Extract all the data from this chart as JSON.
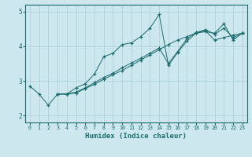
{
  "xlabel": "Humidex (Indice chaleur)",
  "bg_color": "#cce8ee",
  "line_color": "#1a6b6b",
  "grid_color": "#aacdd6",
  "xlim": [
    -0.5,
    23.5
  ],
  "ylim": [
    1.8,
    5.2
  ],
  "yticks": [
    2,
    3,
    4,
    5
  ],
  "xticks": [
    0,
    1,
    2,
    3,
    4,
    5,
    6,
    7,
    8,
    9,
    10,
    11,
    12,
    13,
    14,
    15,
    16,
    17,
    18,
    19,
    20,
    21,
    22,
    23
  ],
  "series1": [
    [
      0,
      2.85
    ],
    [
      1,
      2.62
    ],
    [
      2,
      2.3
    ],
    [
      3,
      2.62
    ],
    [
      4,
      2.62
    ],
    [
      5,
      2.8
    ],
    [
      6,
      2.92
    ],
    [
      7,
      3.2
    ],
    [
      8,
      3.7
    ],
    [
      9,
      3.8
    ],
    [
      10,
      4.05
    ],
    [
      11,
      4.1
    ],
    [
      12,
      4.28
    ],
    [
      13,
      4.52
    ],
    [
      14,
      4.92
    ],
    [
      15,
      3.45
    ],
    [
      16,
      3.82
    ],
    [
      17,
      4.15
    ],
    [
      18,
      4.38
    ],
    [
      19,
      4.42
    ],
    [
      20,
      4.38
    ],
    [
      21,
      4.65
    ],
    [
      22,
      4.18
    ],
    [
      23,
      4.38
    ]
  ],
  "series2": [
    [
      3,
      2.62
    ],
    [
      4,
      2.62
    ],
    [
      5,
      2.68
    ],
    [
      6,
      2.8
    ],
    [
      7,
      2.95
    ],
    [
      8,
      3.1
    ],
    [
      9,
      3.22
    ],
    [
      10,
      3.38
    ],
    [
      11,
      3.52
    ],
    [
      12,
      3.65
    ],
    [
      13,
      3.8
    ],
    [
      14,
      3.95
    ],
    [
      15,
      3.5
    ],
    [
      16,
      3.85
    ],
    [
      17,
      4.22
    ],
    [
      18,
      4.4
    ],
    [
      19,
      4.48
    ],
    [
      20,
      4.35
    ],
    [
      21,
      4.52
    ],
    [
      22,
      4.25
    ],
    [
      23,
      4.38
    ]
  ],
  "series3": [
    [
      3,
      2.62
    ],
    [
      4,
      2.62
    ],
    [
      5,
      2.65
    ],
    [
      6,
      2.78
    ],
    [
      7,
      2.9
    ],
    [
      8,
      3.05
    ],
    [
      9,
      3.18
    ],
    [
      10,
      3.3
    ],
    [
      11,
      3.45
    ],
    [
      12,
      3.6
    ],
    [
      13,
      3.75
    ],
    [
      14,
      3.9
    ],
    [
      15,
      4.05
    ],
    [
      16,
      4.18
    ],
    [
      17,
      4.28
    ],
    [
      18,
      4.38
    ],
    [
      19,
      4.45
    ],
    [
      20,
      4.18
    ],
    [
      21,
      4.25
    ],
    [
      22,
      4.32
    ],
    [
      23,
      4.38
    ]
  ]
}
